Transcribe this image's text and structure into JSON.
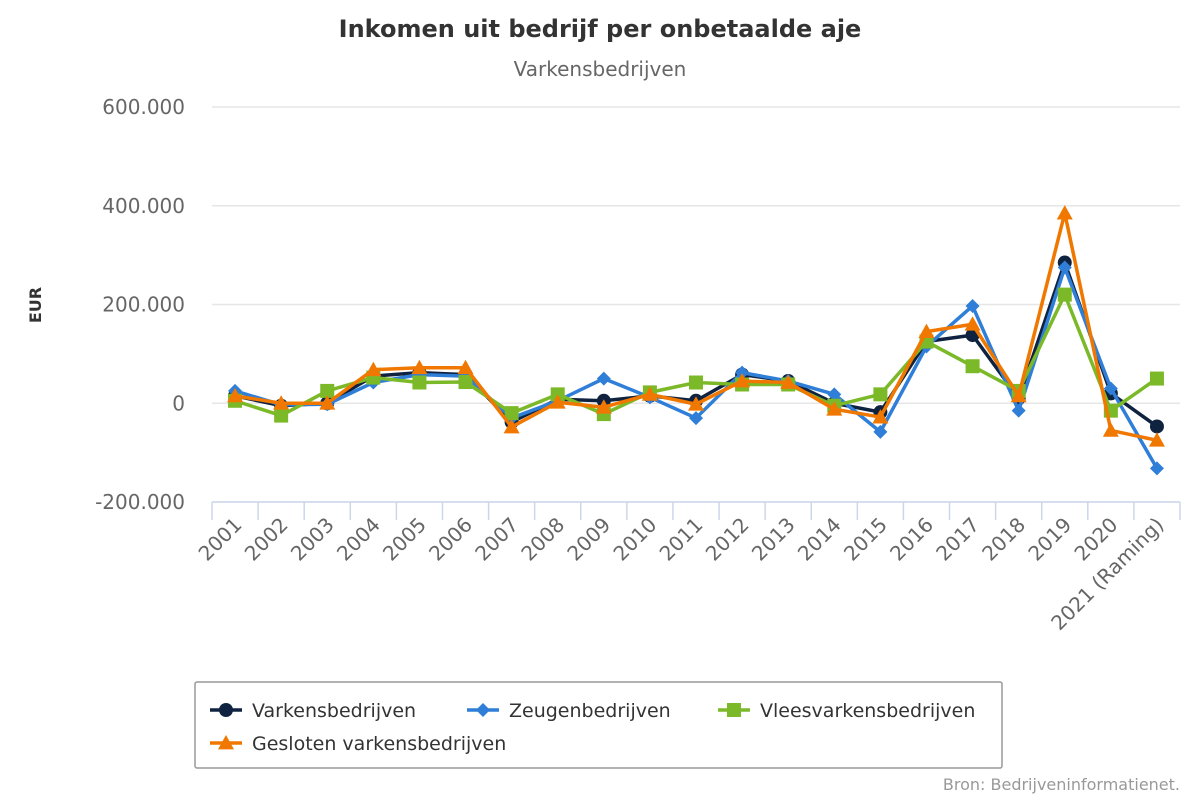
{
  "chart_data": {
    "type": "line",
    "title": "Inkomen uit bedrijf per onbetaalde aje",
    "subtitle": "Varkensbedrijven",
    "ylabel": "EUR",
    "xlabel": "",
    "ylim": [
      -200000,
      600000
    ],
    "yticks": [
      600000,
      400000,
      200000,
      0,
      -200000
    ],
    "ytick_labels": [
      "600.000",
      "400.000",
      "200.000",
      "0",
      "-200.000"
    ],
    "categories": [
      "2001",
      "2002",
      "2003",
      "2004",
      "2005",
      "2006",
      "2007",
      "2008",
      "2009",
      "2010",
      "2011",
      "2012",
      "2013",
      "2014",
      "2015",
      "2016",
      "2017",
      "2018",
      "2019",
      "2020",
      "2021 (Raming)"
    ],
    "grid": true,
    "legend_position": "bottom",
    "series": [
      {
        "name": "Varkensbedrijven",
        "color": "#0f2340",
        "marker": "circle",
        "values": [
          15000,
          -5000,
          0,
          55000,
          62000,
          58000,
          -38000,
          8000,
          5000,
          15000,
          5000,
          58000,
          45000,
          0,
          -18000,
          125000,
          138000,
          10000,
          285000,
          20000,
          -47000
        ]
      },
      {
        "name": "Zeugenbedrijven",
        "color": "#2f7ed8",
        "marker": "diamond",
        "values": [
          25000,
          -3000,
          -2000,
          42000,
          58000,
          55000,
          -30000,
          5000,
          50000,
          12000,
          -30000,
          62000,
          45000,
          18000,
          -58000,
          115000,
          197000,
          -15000,
          275000,
          30000,
          -132000
        ]
      },
      {
        "name": "Vleesvarkensbedrijven",
        "color": "#7cb928",
        "marker": "square",
        "values": [
          5000,
          -25000,
          25000,
          52000,
          42000,
          43000,
          -20000,
          18000,
          -22000,
          22000,
          42000,
          38000,
          38000,
          -5000,
          18000,
          125000,
          75000,
          25000,
          220000,
          -15000,
          50000
        ]
      },
      {
        "name": "Gesloten varkensbedrijven",
        "color": "#f07800",
        "marker": "triangle",
        "values": [
          15000,
          0,
          0,
          68000,
          72000,
          72000,
          -48000,
          2000,
          -8000,
          18000,
          -2000,
          45000,
          42000,
          -12000,
          -28000,
          145000,
          160000,
          15000,
          385000,
          -55000,
          -75000
        ]
      }
    ]
  },
  "credits": "Bron: Bedrijveninformatienet."
}
